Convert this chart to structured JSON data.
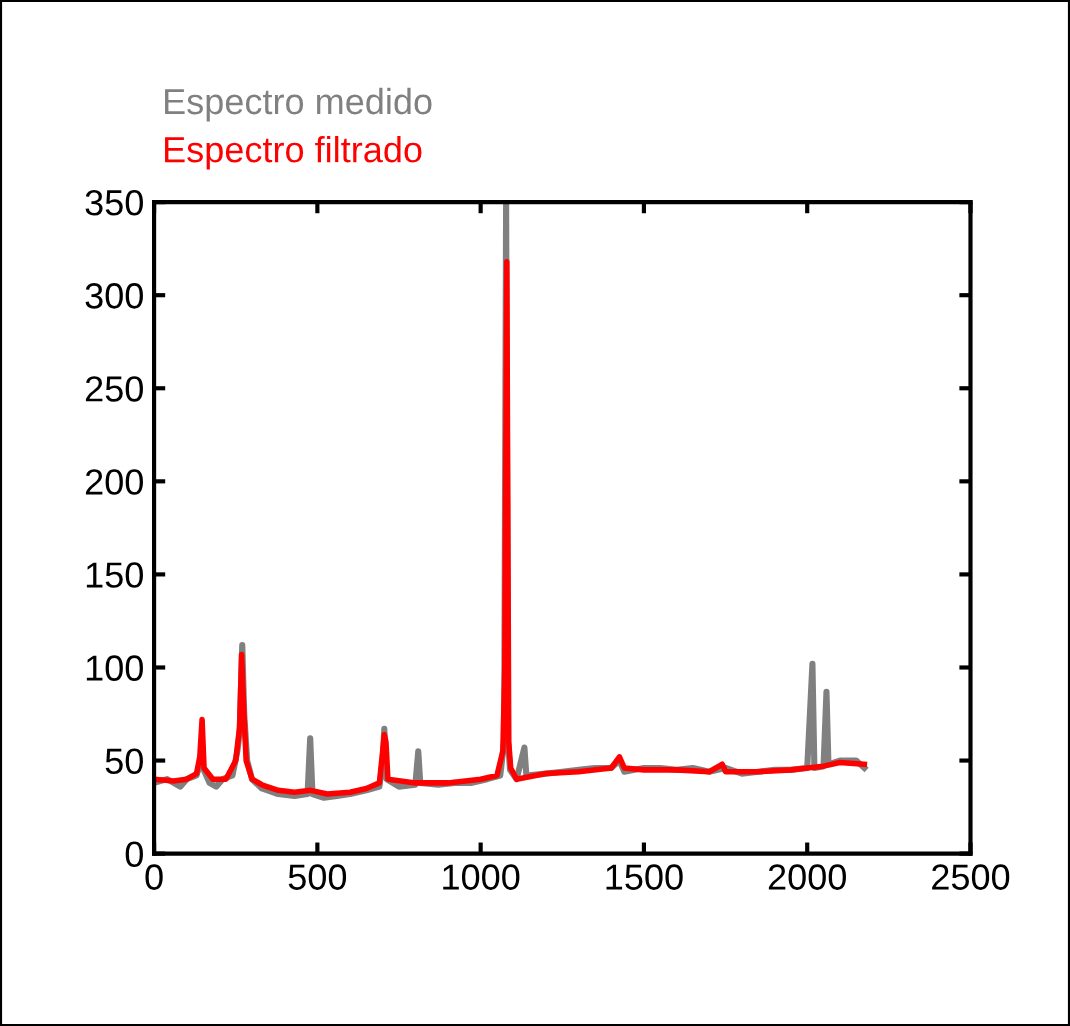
{
  "chart_data": {
    "type": "line",
    "xlim": [
      0,
      2500
    ],
    "xticks": [
      0,
      500,
      1000,
      1500,
      2000,
      2500
    ],
    "ylim": [
      0,
      350
    ],
    "yticks": [
      0,
      50,
      100,
      150,
      200,
      250,
      300,
      350
    ],
    "grid": false,
    "legend": "top left",
    "marker": "none",
    "line_style": "solid",
    "series": [
      {
        "name": "Espectro medido",
        "color": "#808080",
        "x": [
          0,
          40,
          80,
          100,
          130,
          140,
          152,
          170,
          190,
          210,
          240,
          255,
          262,
          270,
          276,
          285,
          300,
          330,
          380,
          430,
          470,
          478,
          485,
          520,
          560,
          600,
          650,
          690,
          700,
          705,
          712,
          750,
          800,
          809,
          815,
          870,
          920,
          970,
          1020,
          1060,
          1072,
          1078,
          1084,
          1090,
          1110,
          1134,
          1140,
          1200,
          1250,
          1300,
          1350,
          1400,
          1425,
          1440,
          1500,
          1550,
          1600,
          1650,
          1700,
          1750,
          1800,
          1850,
          1900,
          1950,
          2000,
          2016,
          2022,
          2050,
          2059,
          2065,
          2100,
          2150,
          2175
        ],
        "values": [
          38,
          40,
          36,
          40,
          42,
          48,
          45,
          38,
          36,
          40,
          42,
          55,
          65,
          112,
          75,
          50,
          40,
          35,
          32,
          31,
          32,
          62,
          32,
          30,
          31,
          32,
          34,
          36,
          50,
          67,
          40,
          36,
          37,
          55,
          38,
          37,
          38,
          38,
          40,
          42,
          60,
          350,
          60,
          45,
          40,
          57,
          42,
          43,
          44,
          45,
          46,
          46,
          50,
          44,
          46,
          46,
          45,
          46,
          44,
          46,
          43,
          44,
          45,
          45,
          46,
          102,
          46,
          47,
          87,
          48,
          50,
          50,
          46
        ]
      },
      {
        "name": "Espectro filtrado",
        "color": "#ff0000",
        "x": [
          0,
          60,
          100,
          130,
          140,
          147,
          153,
          180,
          220,
          250,
          262,
          268,
          274,
          282,
          300,
          330,
          380,
          430,
          480,
          530,
          600,
          650,
          690,
          700,
          705,
          710,
          716,
          800,
          900,
          1000,
          1050,
          1068,
          1074,
          1080,
          1086,
          1092,
          1110,
          1200,
          1300,
          1400,
          1425,
          1440,
          1500,
          1600,
          1700,
          1740,
          1750,
          1850,
          1950,
          2000,
          2050,
          2100,
          2175
        ],
        "values": [
          40,
          39,
          40,
          43,
          52,
          72,
          46,
          40,
          40,
          50,
          68,
          107,
          80,
          50,
          40,
          37,
          34,
          33,
          34,
          32,
          33,
          35,
          38,
          55,
          64,
          60,
          40,
          38,
          38,
          40,
          42,
          55,
          100,
          318,
          60,
          46,
          40,
          43,
          44,
          46,
          52,
          46,
          45,
          45,
          44,
          48,
          44,
          44,
          45,
          46,
          47,
          49,
          48
        ]
      }
    ]
  }
}
